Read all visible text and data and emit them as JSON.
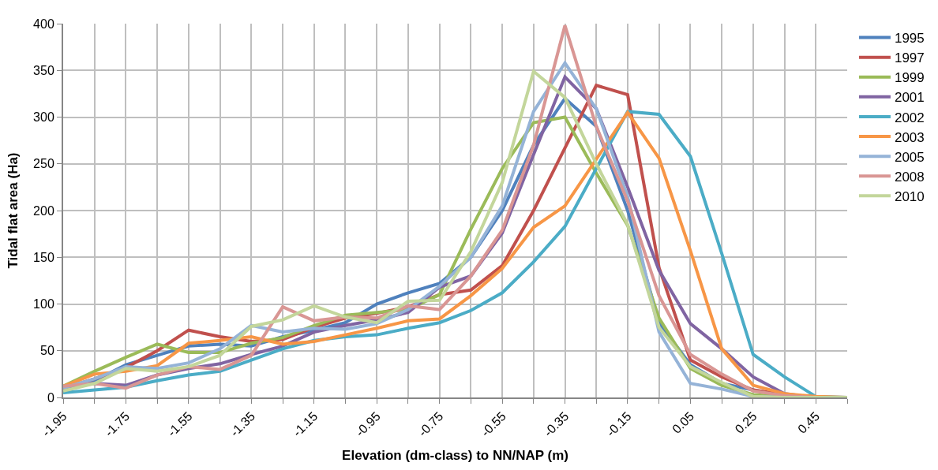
{
  "chart_data": {
    "type": "line",
    "xlabel": "Elevation (dm-class) to NN/NAP (m)",
    "ylabel": "Tidal flat area (Ha)",
    "x": [
      -1.95,
      -1.85,
      -1.75,
      -1.65,
      -1.55,
      -1.45,
      -1.35,
      -1.25,
      -1.15,
      -1.05,
      -0.95,
      -0.85,
      -0.75,
      -0.65,
      -0.55,
      -0.45,
      -0.35,
      -0.25,
      -0.15,
      -0.05,
      0.05,
      0.15,
      0.25,
      0.35,
      0.45,
      0.55
    ],
    "series": [
      {
        "name": "1995",
        "color": "#4f81bd",
        "values": [
          8,
          18,
          35,
          45,
          55,
          57,
          55,
          65,
          72,
          80,
          100,
          112,
          122,
          150,
          200,
          270,
          320,
          290,
          200,
          80,
          35,
          15,
          8,
          2,
          0,
          0
        ]
      },
      {
        "name": "1997",
        "color": "#c0504d",
        "values": [
          10,
          20,
          32,
          50,
          72,
          65,
          60,
          62,
          75,
          85,
          90,
          97,
          110,
          115,
          141,
          200,
          267,
          334,
          324,
          139,
          40,
          22,
          8,
          3,
          0,
          0
        ]
      },
      {
        "name": "1999",
        "color": "#9bbb59",
        "values": [
          12,
          28,
          43,
          57,
          48,
          48,
          58,
          64,
          77,
          88,
          91,
          94,
          110,
          180,
          245,
          294,
          300,
          240,
          184,
          85,
          31,
          13,
          3,
          1,
          0,
          0
        ]
      },
      {
        "name": "2001",
        "color": "#8064a2",
        "values": [
          10,
          15,
          13,
          24,
          31,
          36,
          46,
          55,
          70,
          77,
          83,
          91,
          118,
          130,
          176,
          260,
          343,
          309,
          225,
          136,
          79,
          52,
          22,
          4,
          0,
          0
        ]
      },
      {
        "name": "2002",
        "color": "#4bacc6",
        "values": [
          5,
          8,
          11,
          18,
          24,
          28,
          40,
          52,
          61,
          65,
          67,
          74,
          80,
          93,
          112,
          145,
          183,
          245,
          306,
          303,
          258,
          154,
          46,
          22,
          1,
          0
        ]
      },
      {
        "name": "2003",
        "color": "#f79646",
        "values": [
          12,
          25,
          28,
          34,
          58,
          61,
          65,
          57,
          60,
          67,
          74,
          82,
          84,
          109,
          138,
          182,
          205,
          255,
          305,
          256,
          157,
          52,
          13,
          4,
          1,
          0
        ]
      },
      {
        "name": "2005",
        "color": "#95b3d7",
        "values": [
          10,
          20,
          33,
          31,
          37,
          52,
          77,
          70,
          74,
          73,
          79,
          94,
          119,
          150,
          205,
          306,
          358,
          309,
          215,
          70,
          15,
          9,
          1,
          0,
          0,
          0
        ]
      },
      {
        "name": "2008",
        "color": "#d99694",
        "values": [
          12,
          15,
          10,
          24,
          33,
          30,
          45,
          97,
          82,
          86,
          85,
          98,
          94,
          130,
          179,
          270,
          398,
          290,
          210,
          109,
          46,
          25,
          7,
          2,
          0,
          0
        ]
      },
      {
        "name": "2010",
        "color": "#c3d69b",
        "values": [
          7,
          15,
          31,
          28,
          33,
          45,
          76,
          83,
          98,
          86,
          80,
          103,
          104,
          156,
          230,
          349,
          321,
          250,
          185,
          75,
          33,
          16,
          1,
          0,
          0,
          0
        ]
      }
    ],
    "xlim": [
      -1.95,
      0.55
    ],
    "xticks": [
      -1.95,
      {
        "value": -1.85,
        "label": null
      },
      -1.75,
      {
        "value": -1.65,
        "label": null
      },
      -1.55,
      {
        "value": -1.45,
        "label": null
      },
      -1.35,
      {
        "value": -1.25,
        "label": null
      },
      -1.15,
      {
        "value": -1.05,
        "label": null
      },
      -0.95,
      {
        "value": -0.85,
        "label": null
      },
      -0.75,
      {
        "value": -0.65,
        "label": null
      },
      -0.55,
      {
        "value": -0.45,
        "label": null
      },
      -0.35,
      {
        "value": -0.25,
        "label": null
      },
      -0.15,
      {
        "value": -0.05,
        "label": null
      },
      0.05,
      {
        "value": 0.15,
        "label": null
      },
      0.25,
      {
        "value": 0.35,
        "label": null
      },
      0.45,
      {
        "value": 0.55,
        "label": null
      }
    ],
    "ylim": [
      0,
      400
    ],
    "yticks": [
      0,
      50,
      100,
      150,
      200,
      250,
      300,
      350,
      400
    ],
    "grid": true,
    "legend": "right",
    "marker": "none",
    "line_style": "solid"
  }
}
